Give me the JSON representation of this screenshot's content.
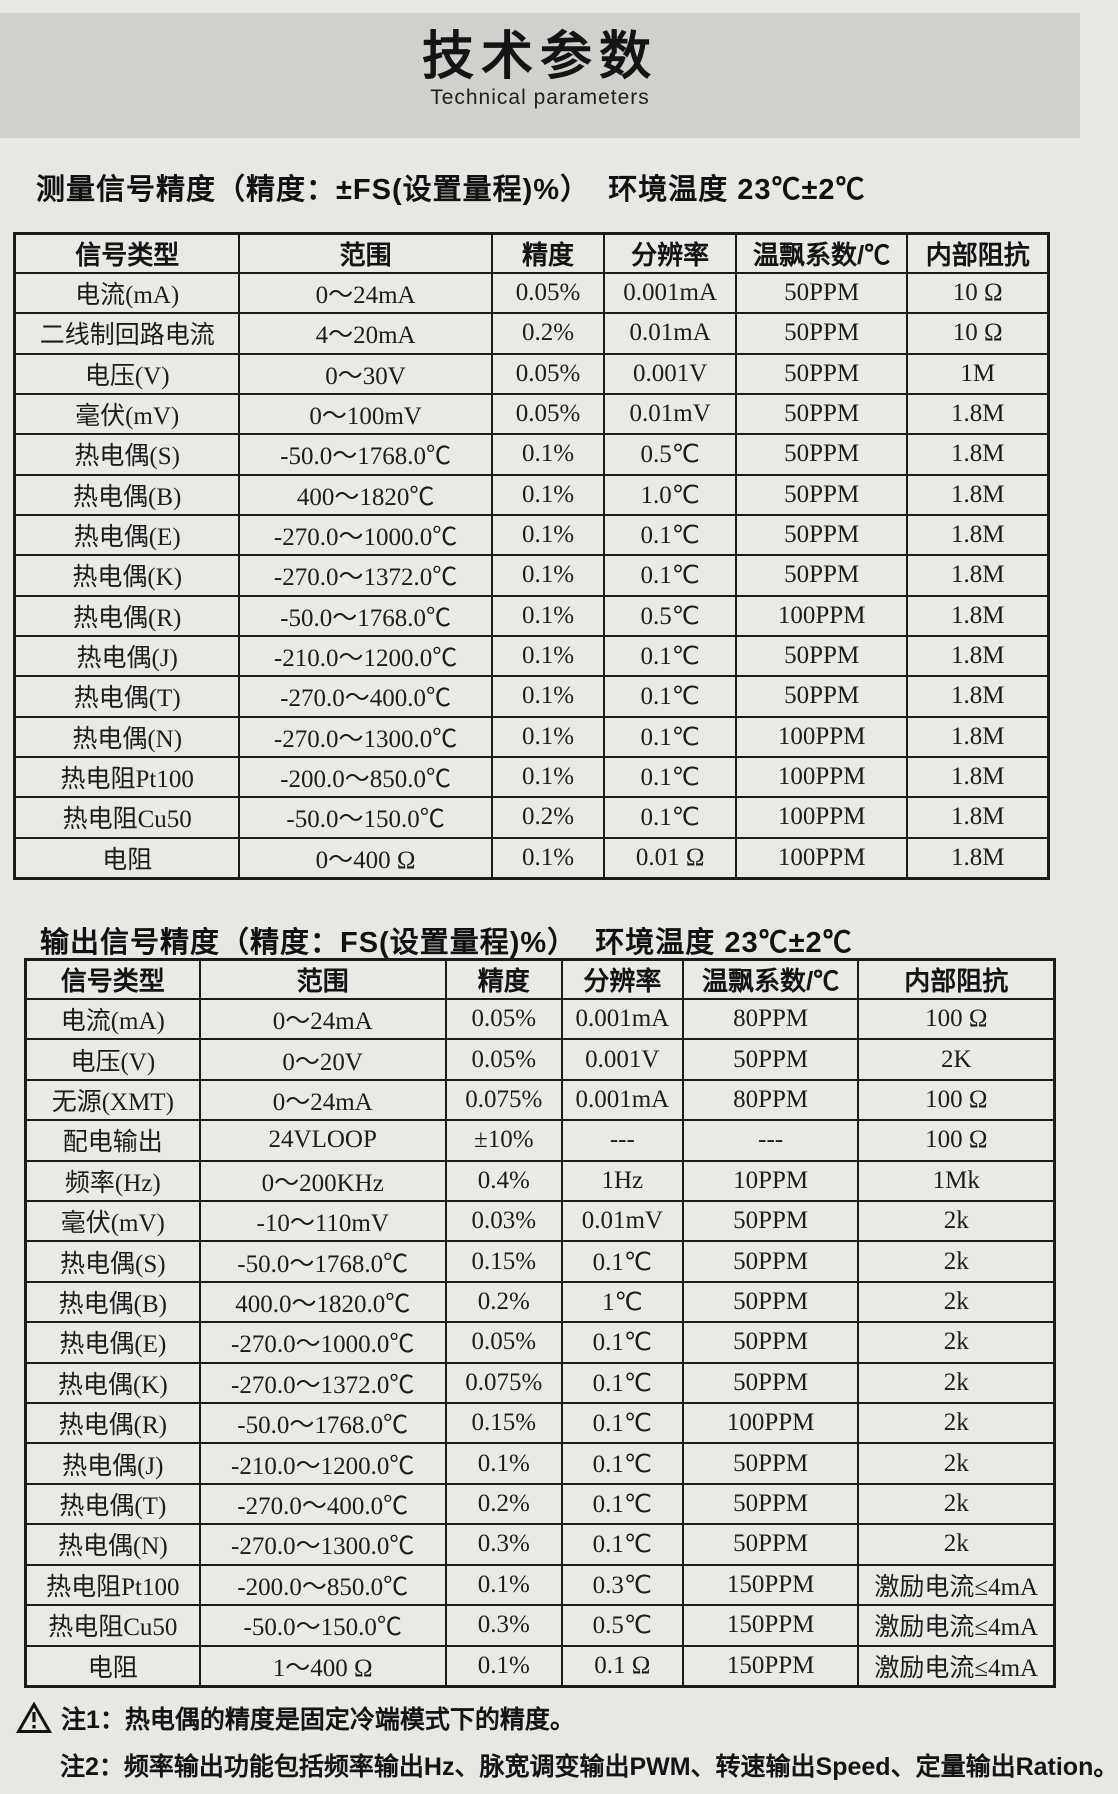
{
  "header": {
    "title": "技术参数",
    "subtitle": "Technical parameters"
  },
  "sections": {
    "measure_heading": "测量信号精度（精度：±FS(设置量程)%）  环境温度 23℃±2℃",
    "output_heading": "输出信号精度（精度：FS(设置量程)%）  环境温度 23℃±2℃"
  },
  "measure_table": {
    "headers": [
      "信号类型",
      "范围",
      "精度",
      "分辨率",
      "温飘系数/℃",
      "内部阻抗"
    ],
    "rows": [
      [
        "电流(mA)",
        "0～24mA",
        "0.05%",
        "0.001mA",
        "50PPM",
        "10 Ω"
      ],
      [
        "二线制回路电流",
        "4～20mA",
        "0.2%",
        "0.01mA",
        "50PPM",
        "10 Ω"
      ],
      [
        "电压(V)",
        "0～30V",
        "0.05%",
        "0.001V",
        "50PPM",
        "1M"
      ],
      [
        "毫伏(mV)",
        "0～100mV",
        "0.05%",
        "0.01mV",
        "50PPM",
        "1.8M"
      ],
      [
        "热电偶(S)",
        "-50.0～1768.0℃",
        "0.1%",
        "0.5℃",
        "50PPM",
        "1.8M"
      ],
      [
        "热电偶(B)",
        "400～1820℃",
        "0.1%",
        "1.0℃",
        "50PPM",
        "1.8M"
      ],
      [
        "热电偶(E)",
        "-270.0～1000.0℃",
        "0.1%",
        "0.1℃",
        "50PPM",
        "1.8M"
      ],
      [
        "热电偶(K)",
        "-270.0～1372.0℃",
        "0.1%",
        "0.1℃",
        "50PPM",
        "1.8M"
      ],
      [
        "热电偶(R)",
        "-50.0～1768.0℃",
        "0.1%",
        "0.5℃",
        "100PPM",
        "1.8M"
      ],
      [
        "热电偶(J)",
        "-210.0～1200.0℃",
        "0.1%",
        "0.1℃",
        "50PPM",
        "1.8M"
      ],
      [
        "热电偶(T)",
        "-270.0～400.0℃",
        "0.1%",
        "0.1℃",
        "50PPM",
        "1.8M"
      ],
      [
        "热电偶(N)",
        "-270.0～1300.0℃",
        "0.1%",
        "0.1℃",
        "100PPM",
        "1.8M"
      ],
      [
        "热电阻Pt100",
        "-200.0～850.0℃",
        "0.1%",
        "0.1℃",
        "100PPM",
        "1.8M"
      ],
      [
        "热电阻Cu50",
        "-50.0～150.0℃",
        "0.2%",
        "0.1℃",
        "100PPM",
        "1.8M"
      ],
      [
        "电阻",
        "0～400 Ω",
        "0.1%",
        "0.01 Ω",
        "100PPM",
        "1.8M"
      ]
    ]
  },
  "output_table": {
    "headers": [
      "信号类型",
      "范围",
      "精度",
      "分辨率",
      "温飘系数/℃",
      "内部阻抗"
    ],
    "rows": [
      [
        "电流(mA)",
        "0～24mA",
        "0.05%",
        "0.001mA",
        "80PPM",
        "100 Ω"
      ],
      [
        "电压(V)",
        "0～20V",
        "0.05%",
        "0.001V",
        "50PPM",
        "2K"
      ],
      [
        "无源(XMT)",
        "0～24mA",
        "0.075%",
        "0.001mA",
        "80PPM",
        "100 Ω"
      ],
      [
        "配电输出",
        "24VLOOP",
        "±10%",
        "---",
        "---",
        "100 Ω"
      ],
      [
        "频率(Hz)",
        "0～200KHz",
        "0.4%",
        "1Hz",
        "10PPM",
        "1Mk"
      ],
      [
        "毫伏(mV)",
        "-10～110mV",
        "0.03%",
        "0.01mV",
        "50PPM",
        "2k"
      ],
      [
        "热电偶(S)",
        "-50.0～1768.0℃",
        "0.15%",
        "0.1℃",
        "50PPM",
        "2k"
      ],
      [
        "热电偶(B)",
        "400.0～1820.0℃",
        "0.2%",
        "1℃",
        "50PPM",
        "2k"
      ],
      [
        "热电偶(E)",
        "-270.0～1000.0℃",
        "0.05%",
        "0.1℃",
        "50PPM",
        "2k"
      ],
      [
        "热电偶(K)",
        "-270.0～1372.0℃",
        "0.075%",
        "0.1℃",
        "50PPM",
        "2k"
      ],
      [
        "热电偶(R)",
        "-50.0～1768.0℃",
        "0.15%",
        "0.1℃",
        "100PPM",
        "2k"
      ],
      [
        "热电偶(J)",
        "-210.0～1200.0℃",
        "0.1%",
        "0.1℃",
        "50PPM",
        "2k"
      ],
      [
        "热电偶(T)",
        "-270.0～400.0℃",
        "0.2%",
        "0.1℃",
        "50PPM",
        "2k"
      ],
      [
        "热电偶(N)",
        "-270.0～1300.0℃",
        "0.3%",
        "0.1℃",
        "50PPM",
        "2k"
      ],
      [
        "热电阻Pt100",
        "-200.0～850.0℃",
        "0.1%",
        "0.3℃",
        "150PPM",
        "激励电流≤4mA"
      ],
      [
        "热电阻Cu50",
        "-50.0～150.0℃",
        "0.3%",
        "0.5℃",
        "150PPM",
        "激励电流≤4mA"
      ],
      [
        "电阻",
        "1～400 Ω",
        "0.1%",
        "0.1 Ω",
        "150PPM",
        "激励电流≤4mA"
      ]
    ]
  },
  "notes": {
    "note1": "注1：热电偶的精度是固定冷端模式下的精度。",
    "note2": "注2：频率输出功能包括频率输出Hz、脉宽调变输出PWM、转速输出Speed、定量输出Ration。"
  }
}
